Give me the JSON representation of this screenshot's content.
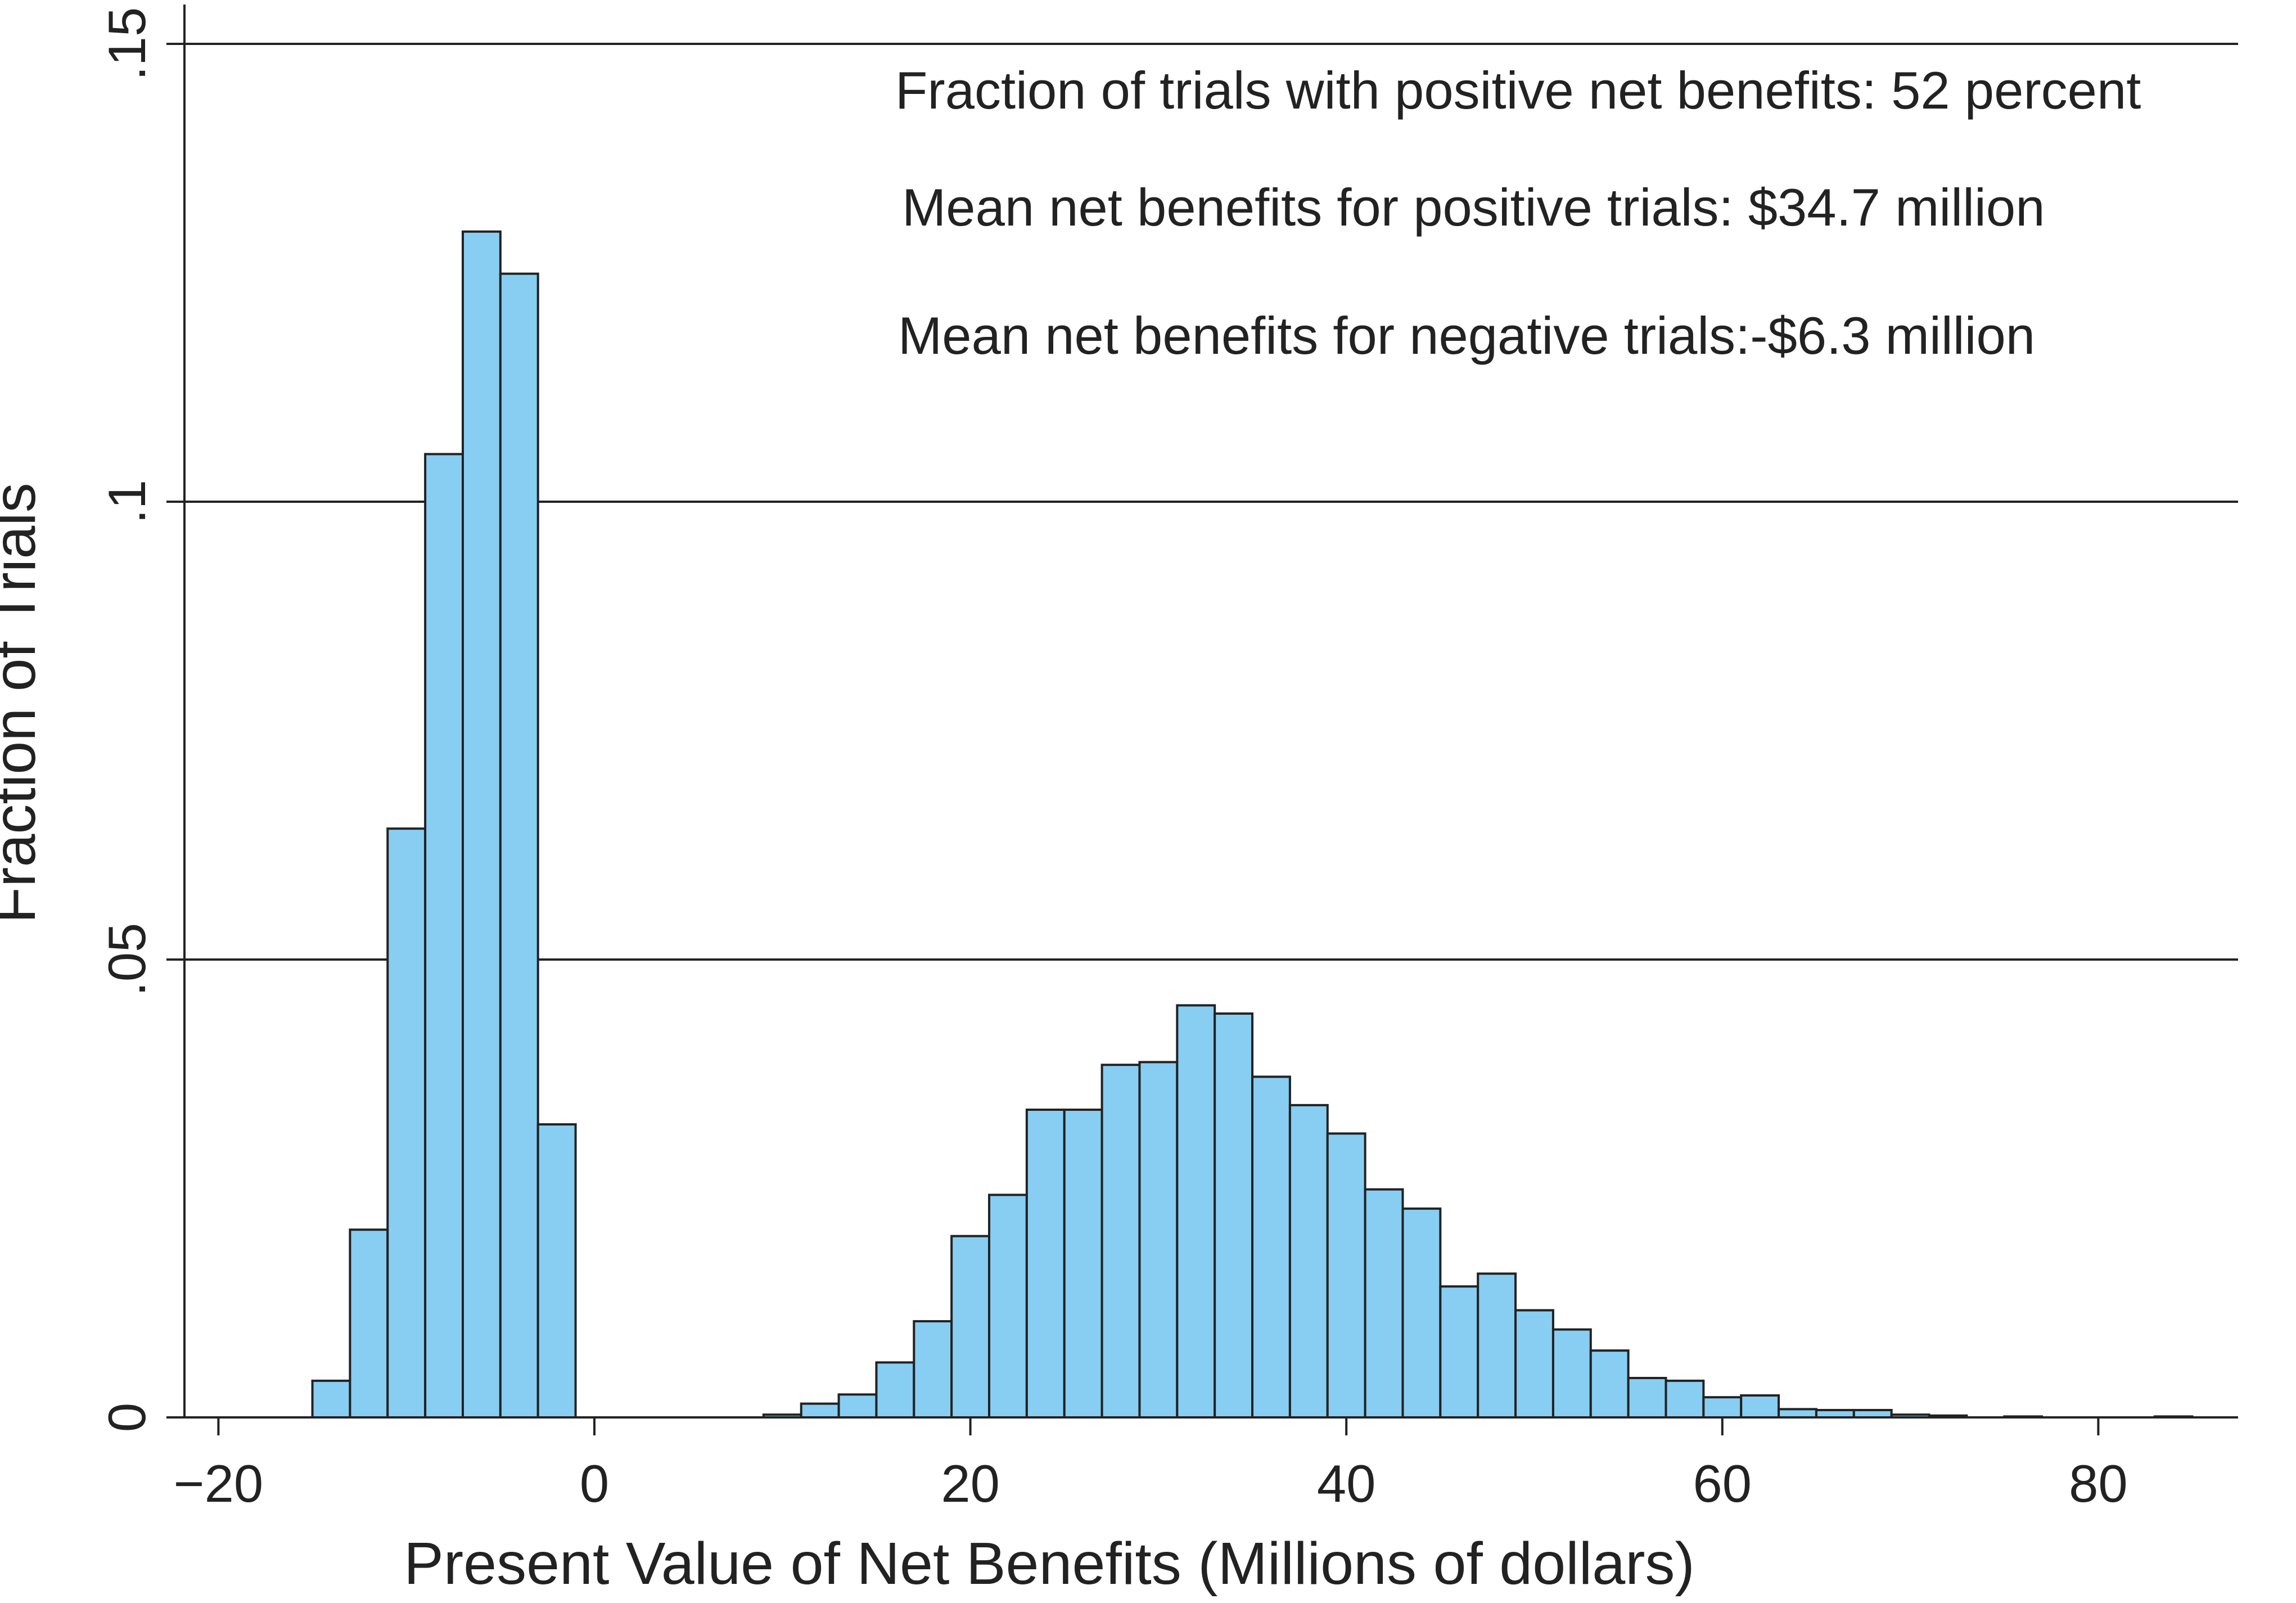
{
  "chart_data": {
    "type": "bar",
    "title": "",
    "xlabel": "Present Value of Net Benefits (Millions of dollars)",
    "ylabel": "Fraction of Trials",
    "xlim": [
      -22,
      87
    ],
    "ylim": [
      0,
      0.15
    ],
    "grid": true,
    "legend": "none",
    "bar_color": "#87CEF2",
    "edge_color": "#222222",
    "x_ticks": [
      {
        "value": -20,
        "label": "−20"
      },
      {
        "value": 0,
        "label": "0"
      },
      {
        "value": 20,
        "label": "20"
      },
      {
        "value": 40,
        "label": "40"
      },
      {
        "value": 60,
        "label": "60"
      },
      {
        "value": 80,
        "label": "80"
      }
    ],
    "y_ticks": [
      {
        "value": 0,
        "label": "0"
      },
      {
        "value": 0.05,
        "label": ".05"
      },
      {
        "value": 0.1,
        "label": ".1"
      },
      {
        "value": 0.15,
        "label": ".15"
      }
    ],
    "bins": [
      {
        "start": -15,
        "end": -13,
        "value": 0.004
      },
      {
        "start": -13,
        "end": -11,
        "value": 0.0205
      },
      {
        "start": -11,
        "end": -9,
        "value": 0.0643
      },
      {
        "start": -9,
        "end": -7,
        "value": 0.1052
      },
      {
        "start": -7,
        "end": -5,
        "value": 0.1295
      },
      {
        "start": -5,
        "end": -3,
        "value": 0.1249
      },
      {
        "start": -3,
        "end": -1,
        "value": 0.032
      },
      {
        "start": 9,
        "end": 11,
        "value": 0.0003
      },
      {
        "start": 11,
        "end": 13,
        "value": 0.0015
      },
      {
        "start": 13,
        "end": 15,
        "value": 0.0025
      },
      {
        "start": 15,
        "end": 17,
        "value": 0.006
      },
      {
        "start": 17,
        "end": 19,
        "value": 0.0105
      },
      {
        "start": 19,
        "end": 21,
        "value": 0.0198
      },
      {
        "start": 21,
        "end": 23,
        "value": 0.0243
      },
      {
        "start": 23,
        "end": 25,
        "value": 0.0336
      },
      {
        "start": 25,
        "end": 27,
        "value": 0.0336
      },
      {
        "start": 27,
        "end": 29,
        "value": 0.0385
      },
      {
        "start": 29,
        "end": 31,
        "value": 0.0388
      },
      {
        "start": 31,
        "end": 33,
        "value": 0.045
      },
      {
        "start": 33,
        "end": 35,
        "value": 0.0441
      },
      {
        "start": 35,
        "end": 37,
        "value": 0.0372
      },
      {
        "start": 37,
        "end": 39,
        "value": 0.0341
      },
      {
        "start": 39,
        "end": 41,
        "value": 0.031
      },
      {
        "start": 41,
        "end": 43,
        "value": 0.0249
      },
      {
        "start": 43,
        "end": 45,
        "value": 0.0228
      },
      {
        "start": 45,
        "end": 47,
        "value": 0.0143
      },
      {
        "start": 47,
        "end": 49,
        "value": 0.0157
      },
      {
        "start": 49,
        "end": 51,
        "value": 0.0117
      },
      {
        "start": 51,
        "end": 53,
        "value": 0.0096
      },
      {
        "start": 53,
        "end": 55,
        "value": 0.0073
      },
      {
        "start": 55,
        "end": 57,
        "value": 0.0043
      },
      {
        "start": 57,
        "end": 59,
        "value": 0.004
      },
      {
        "start": 59,
        "end": 61,
        "value": 0.0022
      },
      {
        "start": 61,
        "end": 63,
        "value": 0.0024
      },
      {
        "start": 63,
        "end": 65,
        "value": 0.0009
      },
      {
        "start": 65,
        "end": 67,
        "value": 0.0008
      },
      {
        "start": 67,
        "end": 69,
        "value": 0.0008
      },
      {
        "start": 69,
        "end": 71,
        "value": 0.0003
      },
      {
        "start": 71,
        "end": 73,
        "value": 0.0002
      },
      {
        "start": 75,
        "end": 77,
        "value": 0.0001
      },
      {
        "start": 83,
        "end": 85,
        "value": 0.0001
      }
    ],
    "annotations": [
      "Fraction of trials with positive net benefits: 52 percent",
      "Mean net benefits for positive trials: $34.7 million",
      "Mean net benefits for negative trials:-$6.3 million"
    ]
  }
}
